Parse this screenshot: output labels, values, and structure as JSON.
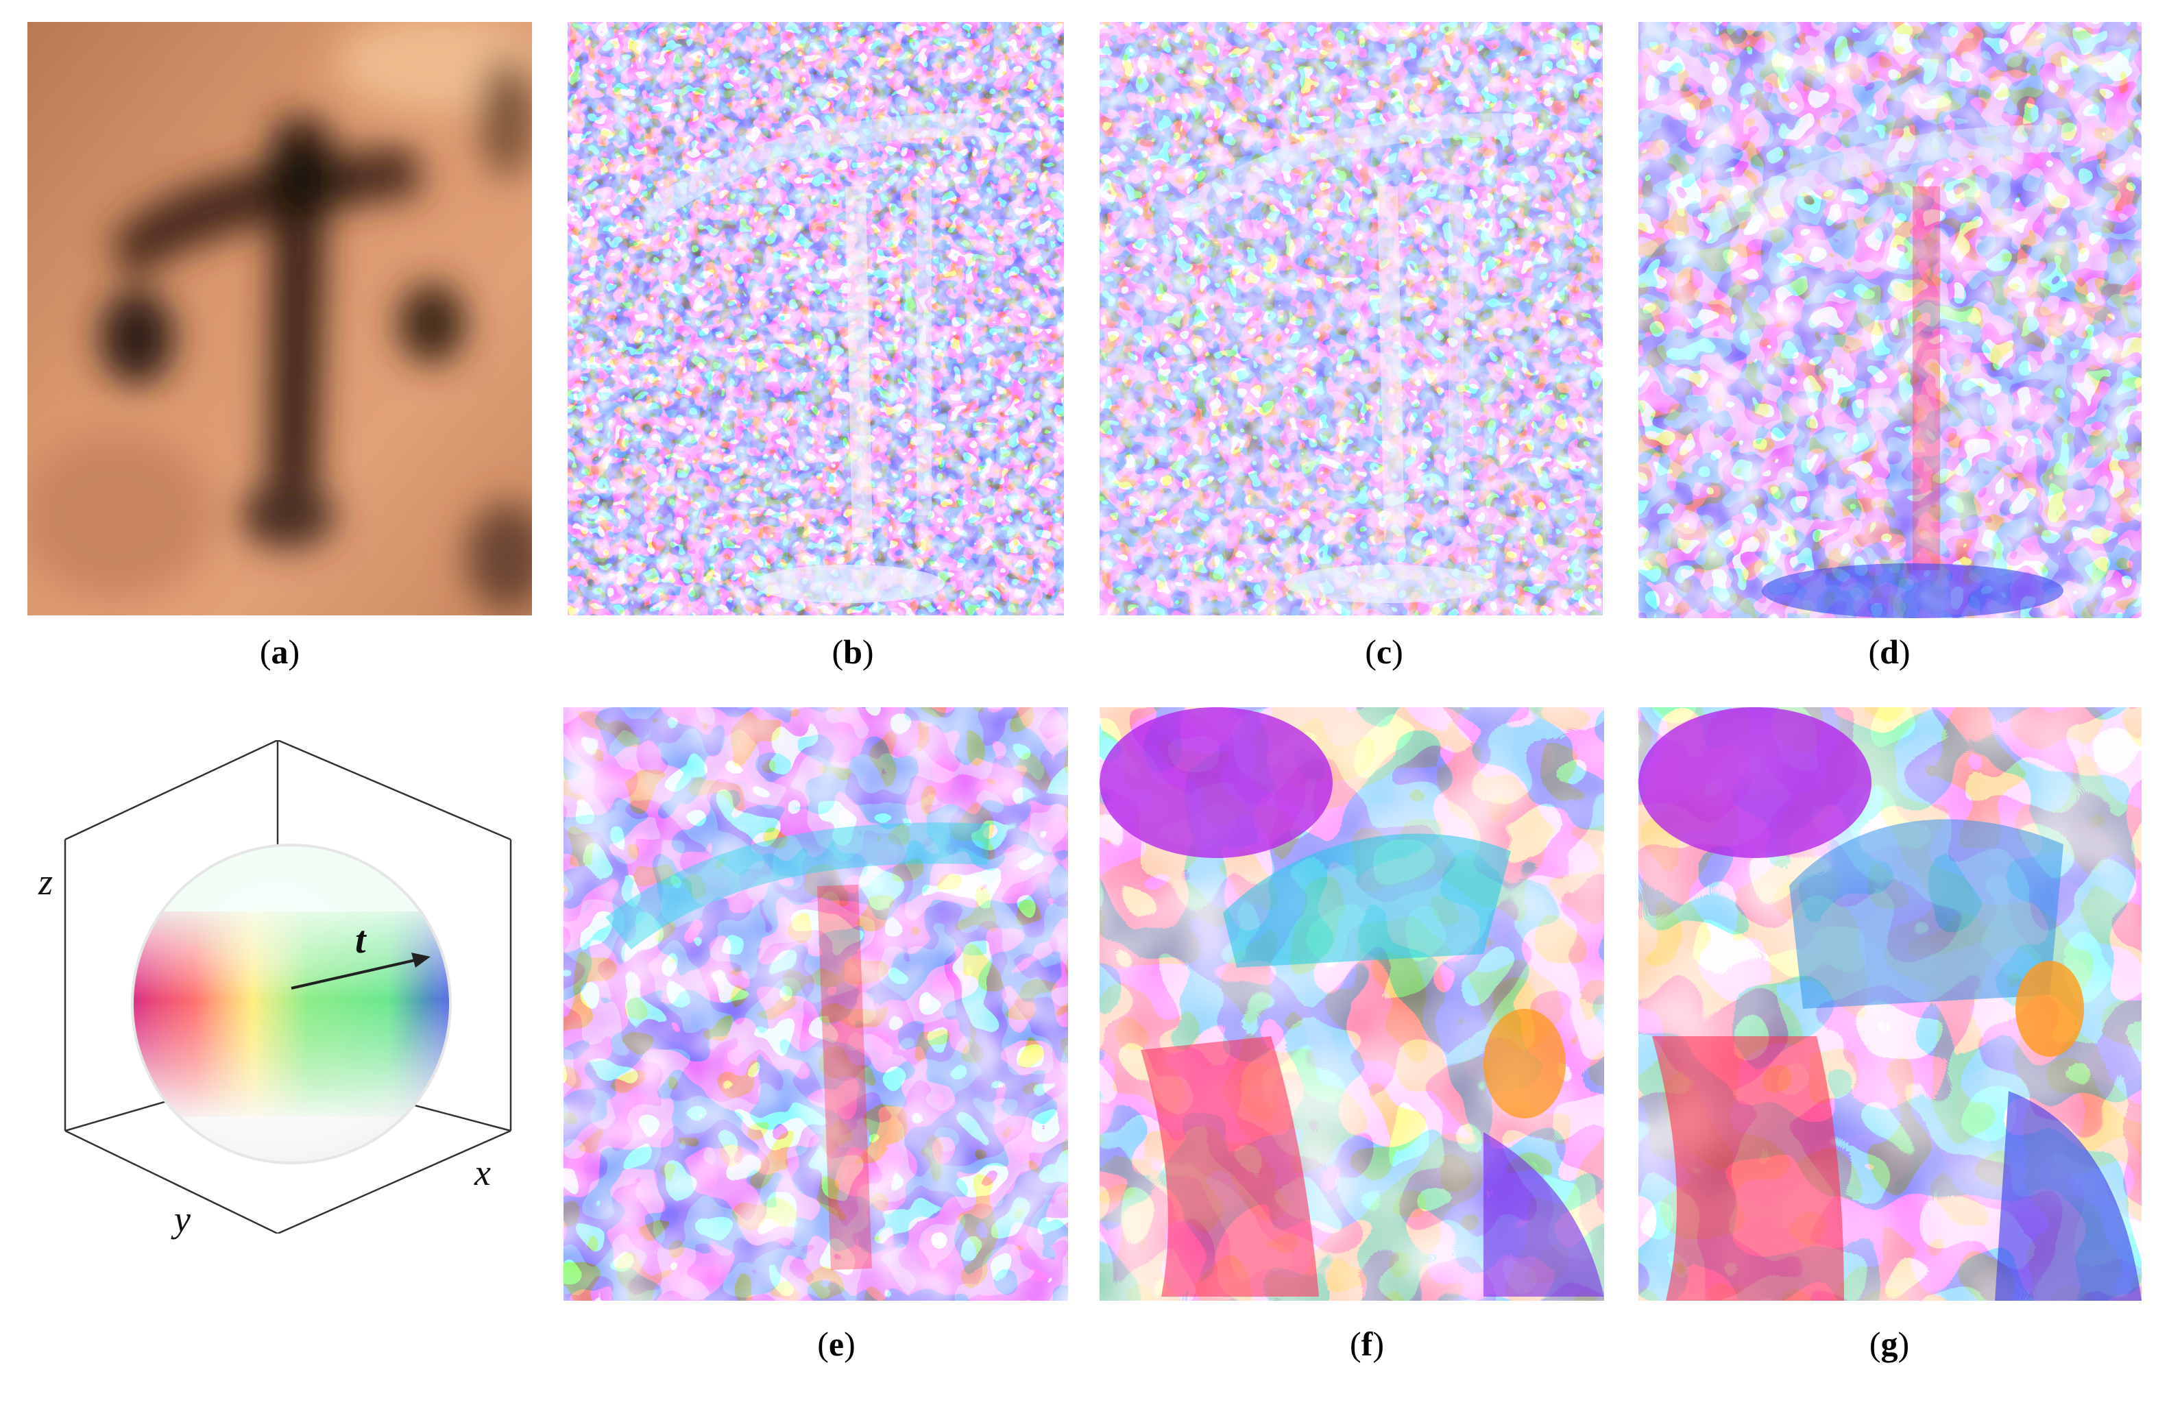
{
  "figure": {
    "panels": [
      {
        "id": "a",
        "caption": "a"
      },
      {
        "id": "b",
        "caption": "b"
      },
      {
        "id": "c",
        "caption": "c"
      },
      {
        "id": "d",
        "caption": "d"
      },
      {
        "id": "e",
        "caption": "e"
      },
      {
        "id": "f",
        "caption": "f"
      },
      {
        "id": "g",
        "caption": "g"
      }
    ],
    "axes": {
      "x": "x",
      "y": "y",
      "z": "z"
    },
    "vector_label": "t",
    "colors": {
      "background": "#ffffff",
      "skin_tone": "#d9966c",
      "skin_dark": "#3a2418",
      "map_palette": [
        "#ff2a3c",
        "#ff8a1c",
        "#f4e81e",
        "#36e83a",
        "#26d8e8",
        "#2a4cf0",
        "#b42ae8",
        "#ff3cc8"
      ]
    }
  }
}
